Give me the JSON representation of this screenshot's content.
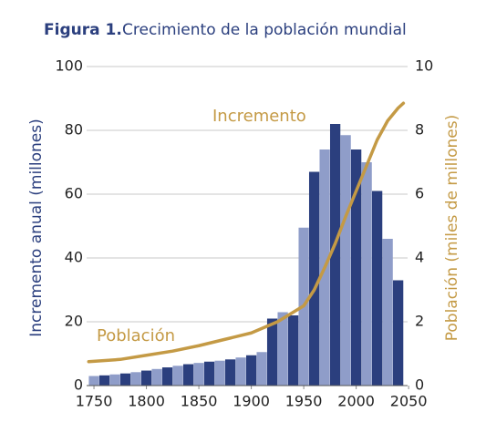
{
  "chart_data": {
    "type": "bar_line",
    "figure_label": "Figura 1.",
    "title": "Crecimiento de la población mundial",
    "ylabel": "Incremento anual (millones)",
    "y2label": "Población (miles de millones)",
    "xlim": [
      1743,
      2049
    ],
    "xticks": [
      1750,
      1800,
      1850,
      1900,
      1950,
      2000,
      2050
    ],
    "ylim": [
      0,
      100
    ],
    "yticks": [
      0,
      20,
      40,
      60,
      80,
      100
    ],
    "y2lim": [
      0,
      10
    ],
    "y2ticks": [
      0,
      2,
      4,
      6,
      8,
      10
    ],
    "grid": true,
    "series": [
      {
        "name": "Incremento",
        "type": "bar",
        "colors": [
          "#8f9dc9",
          "#2b3f7e"
        ],
        "x": [
          1750,
          1760,
          1770,
          1780,
          1790,
          1800,
          1810,
          1820,
          1830,
          1840,
          1850,
          1860,
          1870,
          1880,
          1890,
          1900,
          1910,
          1920,
          1930,
          1940,
          1950,
          1960,
          1970,
          1980,
          1990,
          2000,
          2010,
          2020,
          2030,
          2040
        ],
        "values": [
          3,
          3.2,
          3.5,
          3.8,
          4.2,
          4.7,
          5.2,
          5.7,
          6.2,
          6.7,
          7.1,
          7.5,
          7.8,
          8.2,
          8.8,
          9.5,
          10.5,
          21,
          23,
          22,
          49.5,
          67,
          74,
          82,
          78.5,
          74,
          70,
          61,
          46,
          33
        ]
      },
      {
        "name": "Población",
        "type": "line",
        "axis": "y2",
        "color": "#c49a45",
        "x": [
          1745,
          1775,
          1800,
          1825,
          1850,
          1875,
          1900,
          1925,
          1950,
          1960,
          1970,
          1980,
          1990,
          2000,
          2010,
          2020,
          2030,
          2040,
          2045
        ],
        "values": [
          0.75,
          0.82,
          0.95,
          1.08,
          1.25,
          1.45,
          1.65,
          2.0,
          2.5,
          3.0,
          3.7,
          4.45,
          5.3,
          6.1,
          6.9,
          7.7,
          8.3,
          8.7,
          8.85
        ]
      }
    ]
  }
}
